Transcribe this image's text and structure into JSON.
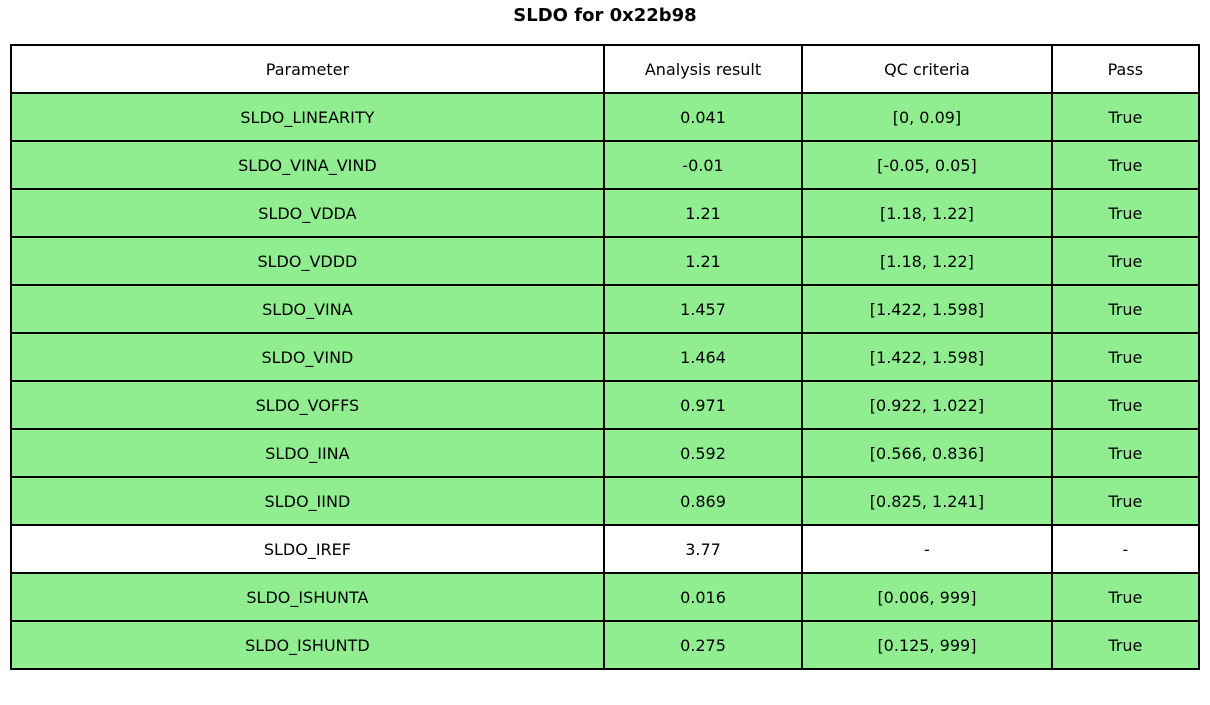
{
  "title": "SLDO for 0x22b98",
  "table": {
    "headers": [
      "Parameter",
      "Analysis result",
      "QC criteria",
      "Pass"
    ],
    "rows": [
      {
        "parameter": "SLDO_LINEARITY",
        "result": "0.041",
        "criteria": "[0, 0.09]",
        "pass": "True",
        "passed": true
      },
      {
        "parameter": "SLDO_VINA_VIND",
        "result": "-0.01",
        "criteria": "[-0.05, 0.05]",
        "pass": "True",
        "passed": true
      },
      {
        "parameter": "SLDO_VDDA",
        "result": "1.21",
        "criteria": "[1.18, 1.22]",
        "pass": "True",
        "passed": true
      },
      {
        "parameter": "SLDO_VDDD",
        "result": "1.21",
        "criteria": "[1.18, 1.22]",
        "pass": "True",
        "passed": true
      },
      {
        "parameter": "SLDO_VINA",
        "result": "1.457",
        "criteria": "[1.422, 1.598]",
        "pass": "True",
        "passed": true
      },
      {
        "parameter": "SLDO_VIND",
        "result": "1.464",
        "criteria": "[1.422, 1.598]",
        "pass": "True",
        "passed": true
      },
      {
        "parameter": "SLDO_VOFFS",
        "result": "0.971",
        "criteria": "[0.922, 1.022]",
        "pass": "True",
        "passed": true
      },
      {
        "parameter": "SLDO_IINA",
        "result": "0.592",
        "criteria": "[0.566, 0.836]",
        "pass": "True",
        "passed": true
      },
      {
        "parameter": "SLDO_IIND",
        "result": "0.869",
        "criteria": "[0.825, 1.241]",
        "pass": "True",
        "passed": true
      },
      {
        "parameter": "SLDO_IREF",
        "result": "3.77",
        "criteria": "-",
        "pass": "-",
        "passed": false
      },
      {
        "parameter": "SLDO_ISHUNTA",
        "result": "0.016",
        "criteria": "[0.006, 999]",
        "pass": "True",
        "passed": true
      },
      {
        "parameter": "SLDO_ISHUNTD",
        "result": "0.275",
        "criteria": "[0.125, 999]",
        "pass": "True",
        "passed": true
      }
    ]
  },
  "colors": {
    "pass_row_bg": "#90EE90",
    "neutral_row_bg": "#FFFFFF",
    "border": "#000000",
    "text": "#000000"
  }
}
